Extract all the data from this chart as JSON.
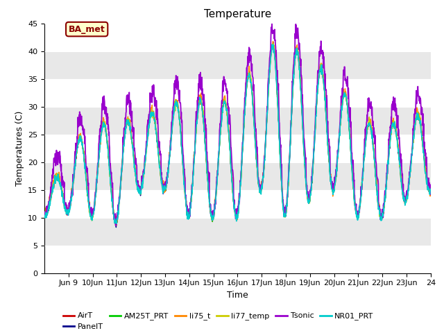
{
  "title": "Temperature",
  "ylabel": "Temperatures (C)",
  "xlabel": "Time",
  "ylim": [
    0,
    45
  ],
  "yticks": [
    0,
    5,
    10,
    15,
    20,
    25,
    30,
    35,
    40,
    45
  ],
  "plot_bg_color": "#ffffff",
  "annotation_text": "BA_met",
  "annotation_box_color": "#ffffcc",
  "annotation_border_color": "#8B0000",
  "legend_entries": [
    "AirT",
    "PanelT",
    "AM25T_PRT",
    "li75_t",
    "li77_temp",
    "Tsonic",
    "NR01_PRT"
  ],
  "series_colors": [
    "#cc0000",
    "#00008B",
    "#00cc00",
    "#ff8800",
    "#cccc00",
    "#9900cc",
    "#00cccc"
  ],
  "series_linewidths": [
    1.0,
    1.0,
    1.0,
    1.0,
    1.0,
    1.3,
    1.2
  ],
  "start_day": 8,
  "end_day": 24,
  "num_points": 1536,
  "title_fontsize": 11,
  "axis_label_fontsize": 9,
  "tick_fontsize": 8,
  "legend_fontsize": 8,
  "band_colors": [
    "#ffffff",
    "#e8e8e8"
  ],
  "day_mins": [
    10,
    11,
    10,
    9,
    15,
    15,
    10,
    10,
    10,
    15,
    10,
    13,
    15,
    10,
    10,
    13,
    15
  ],
  "day_maxs": [
    13,
    22,
    27,
    27,
    28,
    30,
    32,
    30,
    32,
    40,
    42,
    38,
    36,
    28,
    26,
    28,
    29
  ]
}
